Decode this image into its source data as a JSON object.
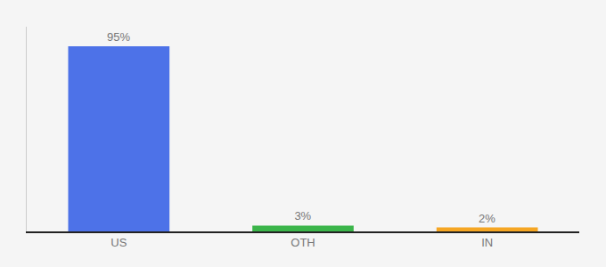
{
  "chart_data": {
    "type": "bar",
    "categories": [
      "US",
      "OTH",
      "IN"
    ],
    "values": [
      95,
      3,
      2
    ],
    "value_labels": [
      "95%",
      "3%",
      "2%"
    ],
    "colors": [
      "#4d72e8",
      "#3bb54a",
      "#f5a623"
    ],
    "ylim": [
      0,
      105
    ],
    "data_labels": true,
    "tick_labels": "x",
    "grid": false
  }
}
